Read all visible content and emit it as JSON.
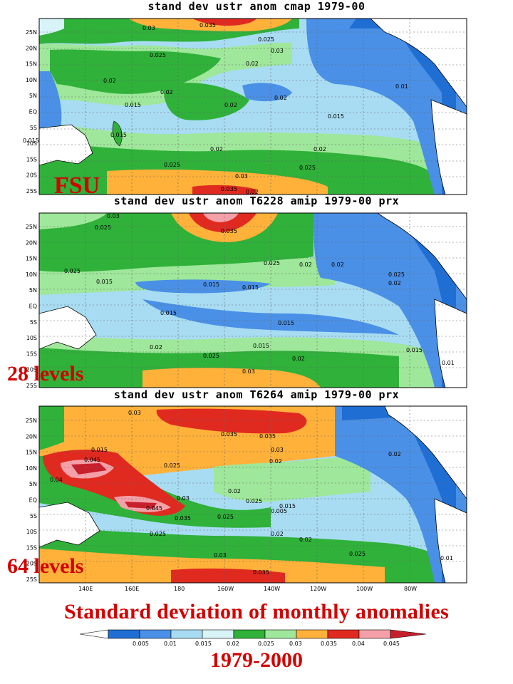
{
  "panels": [
    {
      "title": "stand dev ustr anom cmap 1979-00",
      "label": "FSU",
      "contour_labels": [
        "0.03",
        "0.035",
        "0.025",
        "0.03",
        "0.025",
        "0.02",
        "0.02",
        "0.02",
        "0.02",
        "0.02",
        "0.015",
        "0.01",
        "0.015",
        "0.015",
        "0.015",
        "0.02",
        "0.02",
        "0.025",
        "0.025",
        "0.03",
        "0.035",
        "0.02"
      ]
    },
    {
      "title": "stand dev ustr anom T6228 amip 1979-00 prx",
      "label": "28 levels",
      "contour_labels": [
        "0.03",
        "0.025",
        "0.035",
        "0.025",
        "0.02",
        "0.025",
        "0.02",
        "0.015",
        "0.015",
        "0.015",
        "0.015",
        "0.015",
        "0.025",
        "0.02",
        "0.02",
        "0.015",
        "0.02",
        "0.025",
        "0.03",
        "0.015",
        "0.01"
      ]
    },
    {
      "title": "stand dev ustr anom T6264 amip 1979-00 prx",
      "label": "64 levels",
      "contour_labels": [
        "0.03",
        "0.035",
        "0.035",
        "0.03",
        "0.015",
        "0.045",
        "0.04",
        "0.025",
        "0.02",
        "0.02",
        "0.025",
        "0.03",
        "0.045",
        "0.035",
        "0.025",
        "0.025",
        "0.02",
        "0.015",
        "0.005",
        "0.02",
        "0.02",
        "0.025",
        "0.03",
        "0.035",
        "0.01"
      ]
    }
  ],
  "lat_labels": [
    "25N",
    "20N",
    "15N",
    "10N",
    "5N",
    "EQ",
    "5S",
    "10S",
    "15S",
    "20S",
    "25S"
  ],
  "lon_labels": [
    "140E",
    "160E",
    "180",
    "160W",
    "140W",
    "120W",
    "100W",
    "80W"
  ],
  "colorbar": {
    "ticks": [
      "0.005",
      "0.01",
      "0.015",
      "0.02",
      "0.025",
      "0.03",
      "0.035",
      "0.04",
      "0.045"
    ],
    "colors": [
      "#ffffff",
      "#1f6ed4",
      "#4a90e6",
      "#a8dcf2",
      "#d8f4f8",
      "#2fb13a",
      "#9fe79a",
      "#ffb13a",
      "#e02a20",
      "#f5a0a8",
      "#c81f2c"
    ]
  },
  "caption": "Standard deviation of monthly anomalies",
  "years": "1979-2000"
}
